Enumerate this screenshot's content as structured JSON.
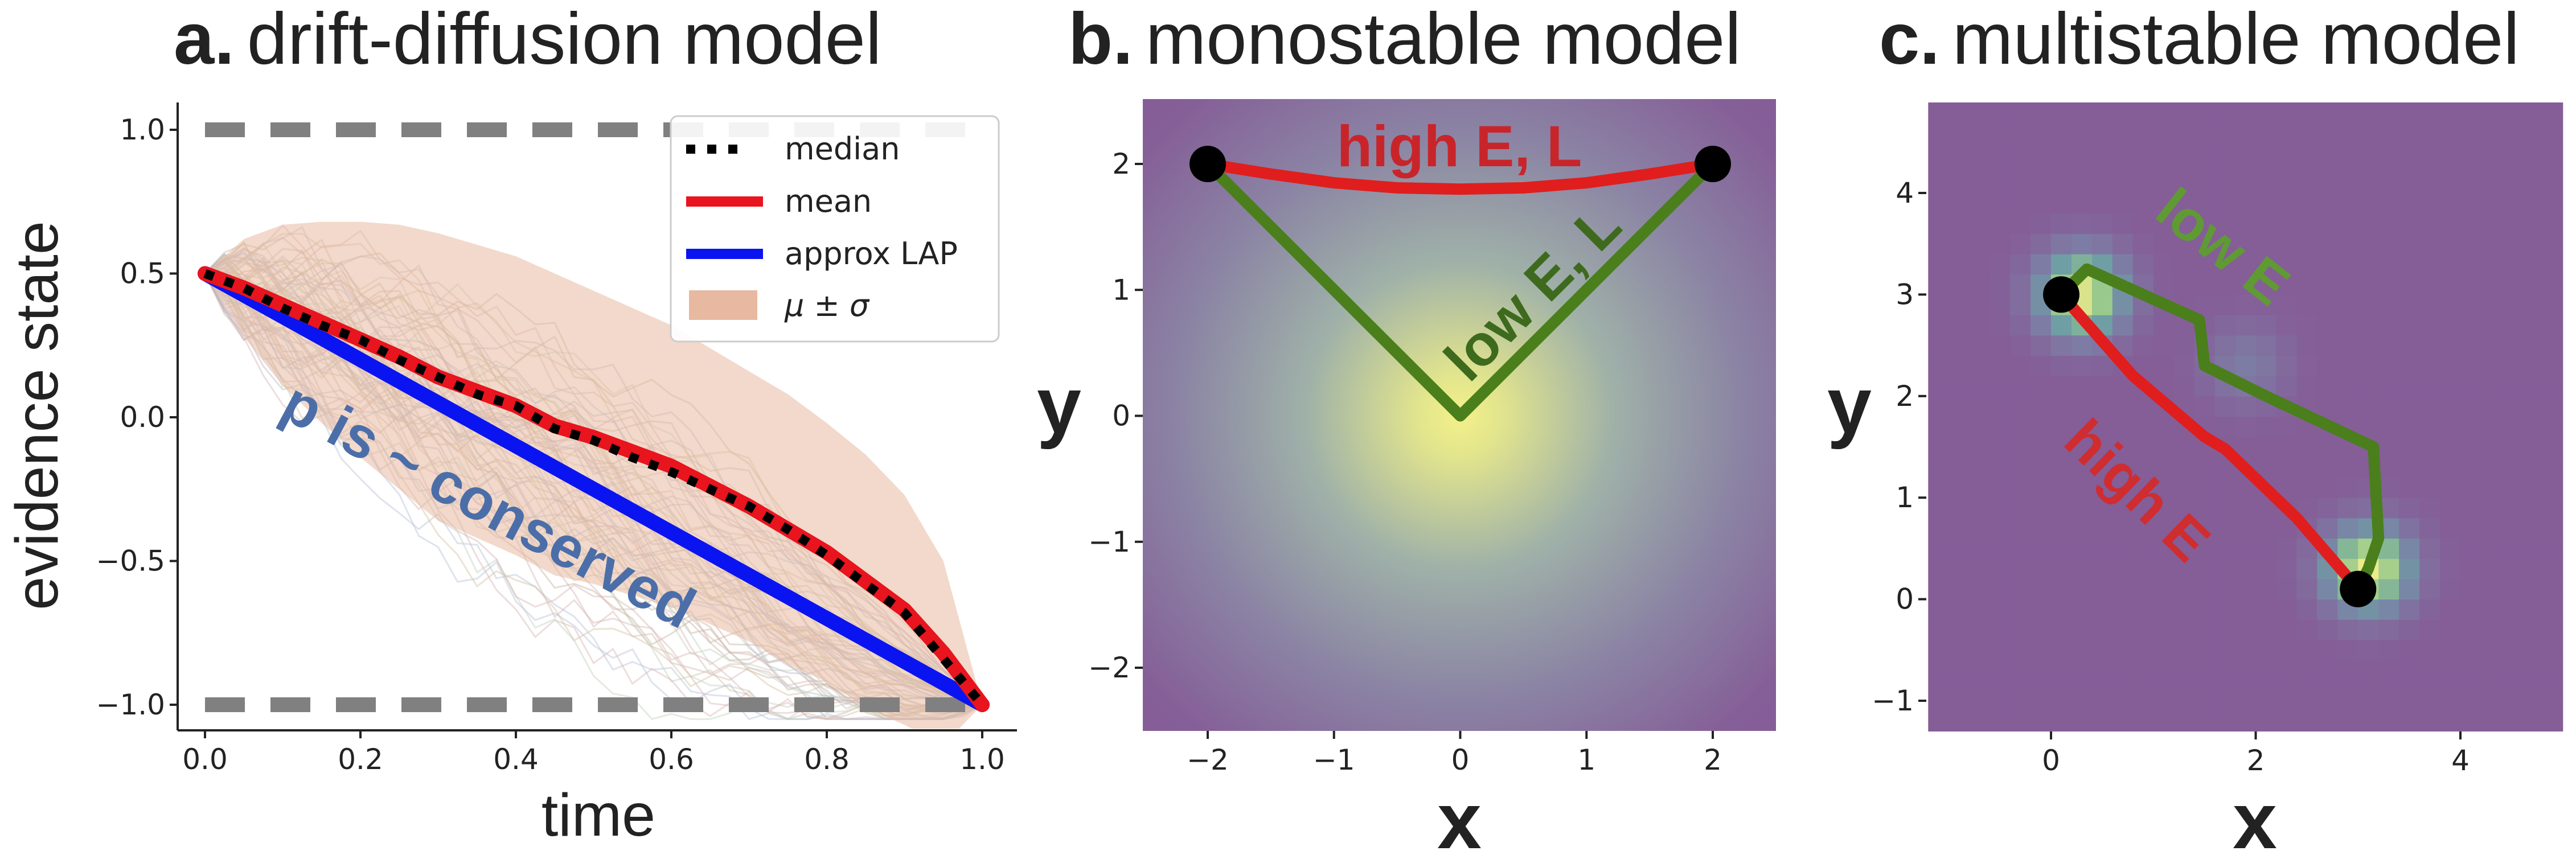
{
  "chart_data": [
    {
      "panel": "a",
      "type": "line",
      "title_prefix": "a.",
      "title": "drift-diffusion model",
      "xlabel": "time",
      "ylabel": "evidence state",
      "xlim": [
        -0.04,
        1.04
      ],
      "ylim": [
        -1.1,
        1.1
      ],
      "xticks": [
        "0.0",
        "0.2",
        "0.4",
        "0.6",
        "0.8",
        "1.0"
      ],
      "yticks": [
        "1.0",
        "0.5",
        "0.0",
        "−0.5",
        "−1.0"
      ],
      "xtick_values": [
        0,
        0.2,
        0.4,
        0.6,
        0.8,
        1.0
      ],
      "ytick_values": [
        1.0,
        0.5,
        0,
        -0.5,
        -1.0
      ],
      "boundaries": [
        1.0,
        -1.0
      ],
      "annotation": "p is ~ conserved",
      "legend_position": "top-right",
      "legend": [
        "median",
        "mean",
        "approx LAP",
        "μ ± σ"
      ],
      "x": [
        0.0,
        0.05,
        0.1,
        0.15,
        0.2,
        0.25,
        0.3,
        0.35,
        0.4,
        0.45,
        0.5,
        0.55,
        0.6,
        0.65,
        0.7,
        0.75,
        0.8,
        0.85,
        0.9,
        0.95,
        1.0
      ],
      "series": [
        {
          "name": "mean",
          "color": "#e8141e",
          "values": [
            0.5,
            0.45,
            0.39,
            0.33,
            0.27,
            0.21,
            0.14,
            0.09,
            0.04,
            -0.03,
            -0.07,
            -0.12,
            -0.17,
            -0.24,
            -0.31,
            -0.39,
            -0.47,
            -0.57,
            -0.67,
            -0.82,
            -1.0
          ]
        },
        {
          "name": "median",
          "color": "#000000",
          "values": [
            0.5,
            0.45,
            0.38,
            0.32,
            0.27,
            0.2,
            0.14,
            0.08,
            0.04,
            -0.04,
            -0.08,
            -0.14,
            -0.19,
            -0.25,
            -0.31,
            -0.39,
            -0.48,
            -0.58,
            -0.68,
            -0.84,
            -1.0
          ]
        },
        {
          "name": "approx LAP",
          "color": "#0a14f0",
          "values": [
            0.5,
            0.425,
            0.35,
            0.275,
            0.2,
            0.125,
            0.05,
            -0.025,
            -0.1,
            -0.175,
            -0.25,
            -0.325,
            -0.4,
            -0.475,
            -0.55,
            -0.625,
            -0.7,
            -0.775,
            -0.85,
            -0.925,
            -1.0
          ]
        },
        {
          "name": "μ ± σ upper",
          "values": [
            0.5,
            0.62,
            0.67,
            0.68,
            0.68,
            0.67,
            0.64,
            0.6,
            0.56,
            0.5,
            0.44,
            0.38,
            0.32,
            0.24,
            0.16,
            0.08,
            -0.02,
            -0.13,
            -0.27,
            -0.5,
            -1.0
          ]
        },
        {
          "name": "μ ± σ lower",
          "values": [
            0.5,
            0.28,
            0.11,
            -0.02,
            -0.14,
            -0.25,
            -0.36,
            -0.42,
            -0.48,
            -0.55,
            -0.58,
            -0.62,
            -0.66,
            -0.72,
            -0.78,
            -0.86,
            -0.92,
            -1.01,
            -1.07,
            -1.14,
            -1.0
          ]
        }
      ]
    },
    {
      "panel": "b",
      "type": "heatmap",
      "title_prefix": "b.",
      "title": "monostable model",
      "xlabel": "x",
      "ylabel": "y",
      "xlim": [
        -2.5,
        2.5
      ],
      "ylim": [
        -2.5,
        2.5
      ],
      "xticks": [
        "−2",
        "−1",
        "0",
        "1",
        "2"
      ],
      "yticks": [
        "2",
        "1",
        "0",
        "−1",
        "−2"
      ],
      "xtick_values": [
        -2,
        -1,
        0,
        1,
        2
      ],
      "ytick_values": [
        2,
        1,
        0,
        -1,
        -2
      ],
      "paths": [
        {
          "label": "high E, L",
          "color": "#e01e1e",
          "x": [
            -2,
            -1.5,
            -1,
            -0.5,
            0,
            0.5,
            1,
            1.5,
            2
          ],
          "y": [
            2,
            1.92,
            1.85,
            1.81,
            1.8,
            1.81,
            1.85,
            1.92,
            2
          ]
        },
        {
          "label": "low E, L",
          "color": "#4a7f1c",
          "x": [
            -2,
            0,
            2
          ],
          "y": [
            2,
            0,
            2
          ]
        }
      ],
      "endpoints": [
        {
          "x": -2,
          "y": 2
        },
        {
          "x": 2,
          "y": 2
        }
      ]
    },
    {
      "panel": "c",
      "type": "heatmap",
      "title_prefix": "c.",
      "title": "multistable model",
      "xlabel": "x",
      "ylabel": "y",
      "xlim": [
        -1.2,
        5.0
      ],
      "ylim": [
        -1.4,
        4.9
      ],
      "xticks": [
        "0",
        "2",
        "4"
      ],
      "yticks": [
        "4",
        "3",
        "2",
        "1",
        "0",
        "−1"
      ],
      "xtick_values": [
        0,
        2,
        4
      ],
      "ytick_values": [
        4,
        3,
        2,
        1,
        0,
        -1
      ],
      "wells": [
        {
          "x": 0.3,
          "y": 3.0,
          "strength": 1.0
        },
        {
          "x": 3.1,
          "y": 0.3,
          "strength": 1.0
        },
        {
          "x": 1.9,
          "y": 2.3,
          "strength": 0.25
        }
      ],
      "paths": [
        {
          "label": "high E",
          "color": "#e01e1e",
          "x": [
            0.1,
            0.8,
            1.5,
            1.7,
            2.4,
            3.0
          ],
          "y": [
            3.0,
            2.2,
            1.6,
            1.48,
            0.8,
            0.1
          ]
        },
        {
          "label": "low E",
          "color": "#4a7f1c",
          "x": [
            0.1,
            0.35,
            1.45,
            1.5,
            2.1,
            3.15,
            3.2,
            3.1,
            3.0
          ],
          "y": [
            3.0,
            3.25,
            2.75,
            2.3,
            2.0,
            1.5,
            0.6,
            0.3,
            0.1
          ]
        }
      ],
      "endpoints": [
        {
          "x": 0.1,
          "y": 3.0
        },
        {
          "x": 3.0,
          "y": 0.1
        }
      ]
    }
  ]
}
